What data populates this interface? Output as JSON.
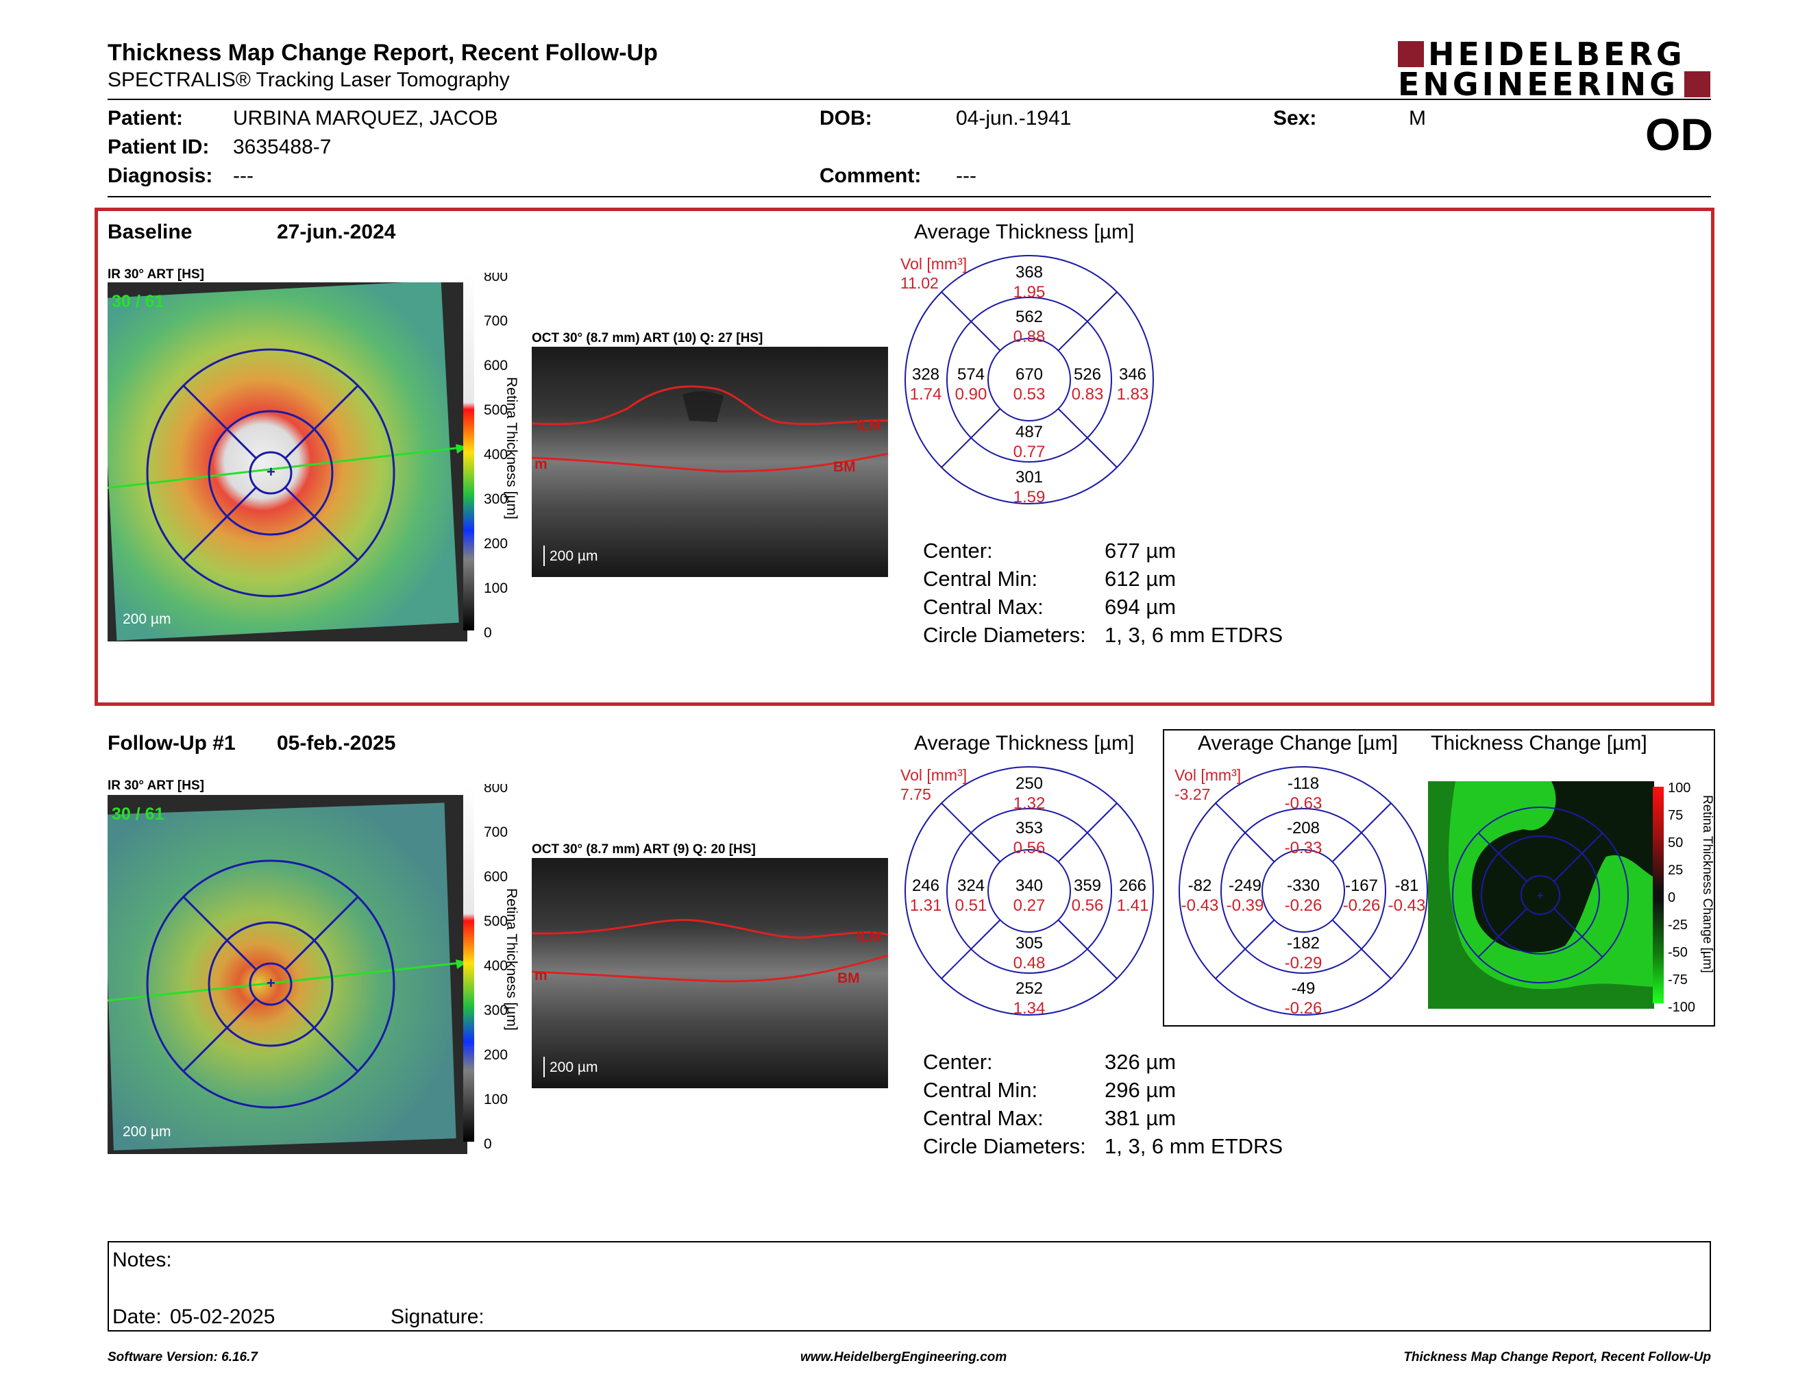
{
  "header": {
    "title": "Thickness Map Change Report, Recent Follow-Up",
    "subtitle": "SPECTRALIS® Tracking Laser Tomography",
    "logo_line1": "HEIDELBERG",
    "logo_line2": "ENGINEERING",
    "eye": "OD"
  },
  "patient": {
    "patient_label": "Patient:",
    "patient": "URBINA MARQUEZ, JACOB",
    "id_label": "Patient ID:",
    "id": "3635488-7",
    "diagnosis_label": "Diagnosis:",
    "diagnosis": "---",
    "dob_label": "DOB:",
    "dob": "04-jun.-1941",
    "comment_label": "Comment:",
    "comment": "---",
    "sex_label": "Sex:",
    "sex": "M"
  },
  "baseline": {
    "label": "Baseline",
    "date": "27-jun.-2024",
    "ir_label": "IR 30° ART [HS]",
    "ir_counter": "30 / 61",
    "ir_scale": "200 µm",
    "oct_label": "OCT 30° (8.7 mm) ART (10) Q: 27 [HS]",
    "oct_scale": "200 µm",
    "avg_title": "Average Thickness [µm]",
    "vol_label": "Vol [mm³]",
    "vol": "11.02",
    "etdrs": {
      "center": [
        "670",
        "0.53"
      ],
      "inner_sup": [
        "562",
        "0.88"
      ],
      "inner_nas": [
        "574",
        "0.90"
      ],
      "inner_inf": [
        "487",
        "0.77"
      ],
      "inner_tmp": [
        "526",
        "0.83"
      ],
      "outer_sup": [
        "368",
        "1.95"
      ],
      "outer_nas": [
        "328",
        "1.74"
      ],
      "outer_inf": [
        "301",
        "1.59"
      ],
      "outer_tmp": [
        "346",
        "1.83"
      ]
    },
    "center_label": "Center:",
    "center_val": "677 µm",
    "min_label": "Central Min:",
    "min_val": "612 µm",
    "max_label": "Central Max:",
    "max_val": "694 µm",
    "diam_label": "Circle Diameters:",
    "diam_val": "1, 3, 6 mm ETDRS"
  },
  "followup": {
    "label": "Follow-Up #1",
    "date": "05-feb.-2025",
    "ir_label": "IR 30° ART [HS]",
    "ir_counter": "30 / 61",
    "ir_scale": "200 µm",
    "oct_label": "OCT 30° (8.7 mm) ART (9) Q: 20 [HS]",
    "oct_scale": "200 µm",
    "avg_title": "Average Thickness [µm]",
    "vol_label": "Vol [mm³]",
    "vol": "7.75",
    "etdrs": {
      "center": [
        "340",
        "0.27"
      ],
      "inner_sup": [
        "353",
        "0.56"
      ],
      "inner_nas": [
        "324",
        "0.51"
      ],
      "inner_inf": [
        "305",
        "0.48"
      ],
      "inner_tmp": [
        "359",
        "0.56"
      ],
      "outer_sup": [
        "250",
        "1.32"
      ],
      "outer_nas": [
        "246",
        "1.31"
      ],
      "outer_inf": [
        "252",
        "1.34"
      ],
      "outer_tmp": [
        "266",
        "1.41"
      ]
    },
    "change_title": "Average Change [µm]",
    "change_vol_label": "Vol [mm³]",
    "change_vol": "-3.27",
    "change": {
      "center": [
        "-330",
        "-0.26"
      ],
      "inner_sup": [
        "-208",
        "-0.33"
      ],
      "inner_nas": [
        "-249",
        "-0.39"
      ],
      "inner_inf": [
        "-182",
        "-0.29"
      ],
      "inner_tmp": [
        "-167",
        "-0.26"
      ],
      "outer_sup": [
        "-118",
        "-0.63"
      ],
      "outer_nas": [
        "-82",
        "-0.43"
      ],
      "outer_inf": [
        "-49",
        "-0.26"
      ],
      "outer_tmp": [
        "-81",
        "-0.43"
      ]
    },
    "thickness_change_title": "Thickness Change [µm]",
    "center_label": "Center:",
    "center_val": "326 µm",
    "min_label": "Central Min:",
    "min_val": "296 µm",
    "max_label": "Central Max:",
    "max_val": "381 µm",
    "diam_label": "Circle Diameters:",
    "diam_val": "1, 3, 6 mm ETDRS"
  },
  "thickness_scale": {
    "axis_label": "Retina Thickness [µm]",
    "ticks": [
      "800",
      "700",
      "600",
      "500",
      "400",
      "300",
      "200",
      "100",
      "0"
    ]
  },
  "change_scale": {
    "axis_label": "Retina Thickness Change [µm]",
    "ticks": [
      "100",
      "75",
      "50",
      "25",
      "0",
      "-25",
      "-50",
      "-75",
      "-100"
    ]
  },
  "oct_labels": {
    "ilm": "ILM",
    "bm": "BM",
    "m": "m"
  },
  "notes": {
    "notes_label": "Notes:",
    "date_label": "Date:",
    "date": "05-02-2025",
    "signature_label": "Signature:"
  },
  "footer": {
    "version": "Software Version: 6.16.7",
    "website": "www.HeidelbergEngineering.com",
    "report": "Thickness Map Change Report, Recent Follow-Up"
  },
  "colors": {
    "accent_red": "#c1272d",
    "brand": "#8a1c2b",
    "etdrs_blue": "#1a1aa6",
    "value_red": "#d0202a"
  }
}
